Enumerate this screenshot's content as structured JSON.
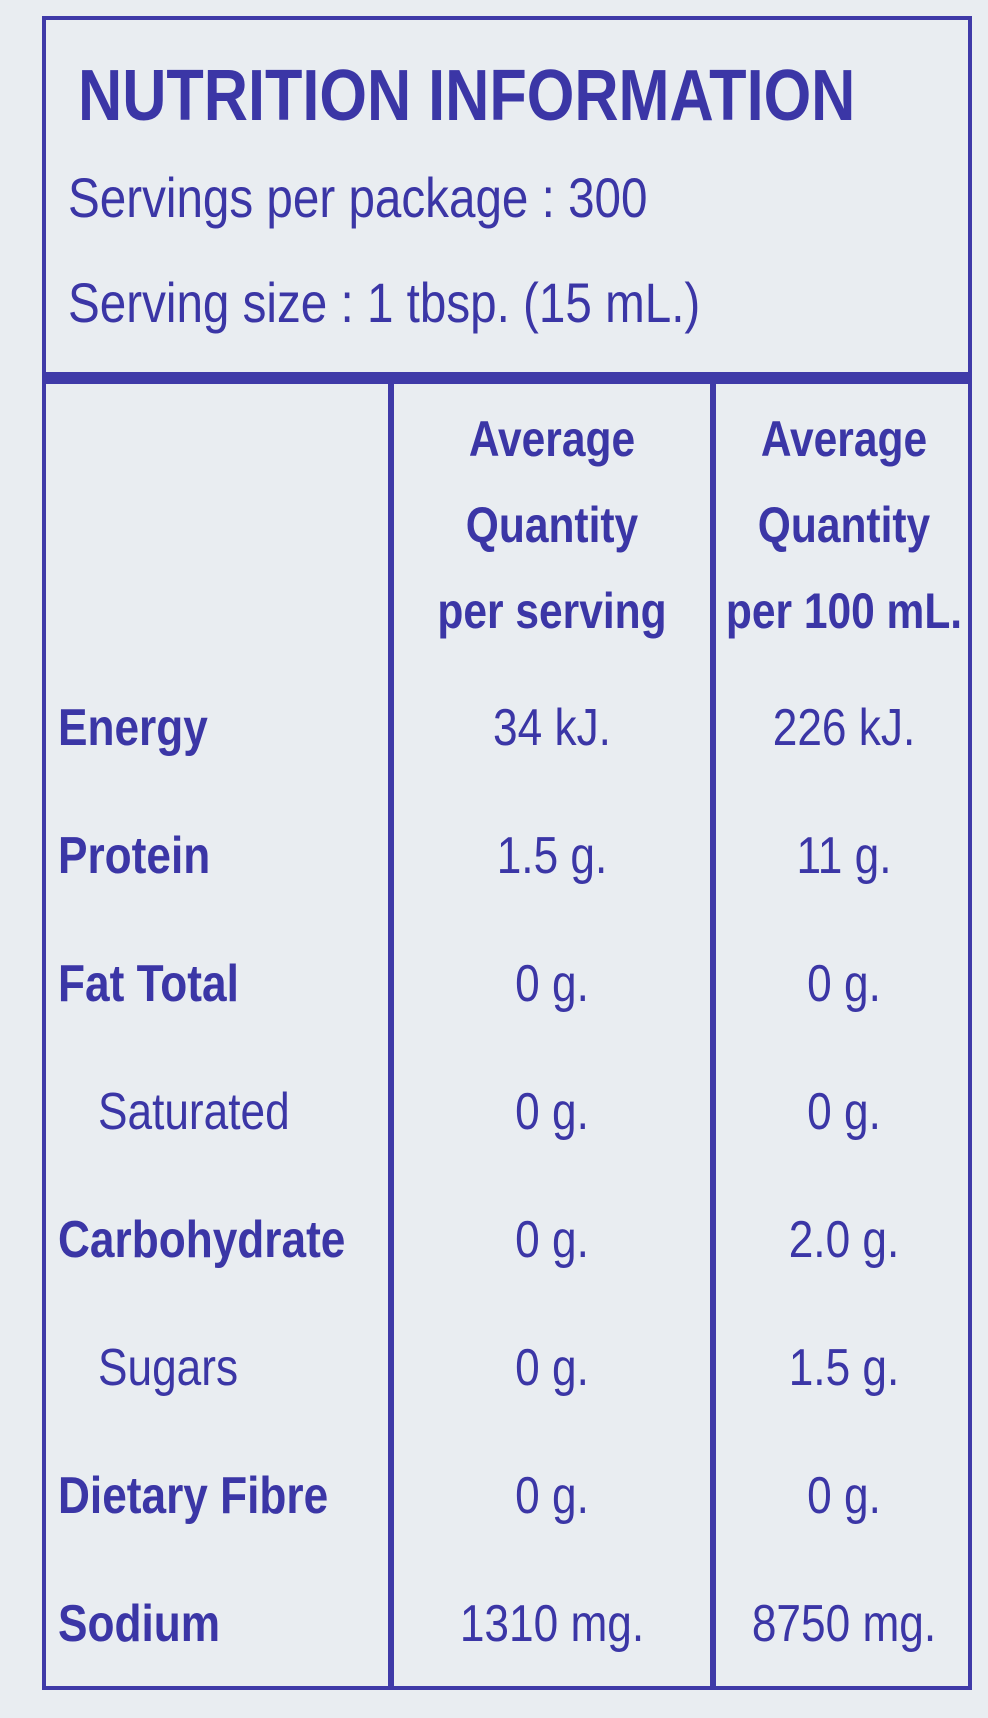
{
  "header": {
    "title": "NUTRITION INFORMATION",
    "servings": "Servings per package : 300",
    "serving_size": "Serving size : 1 tbsp. (15 mL.)"
  },
  "table": {
    "columns": [
      [
        "Average",
        "Quantity",
        "per serving"
      ],
      [
        "Average",
        "Quantity",
        "per 100 mL."
      ]
    ],
    "rows": [
      [
        "Energy",
        "34 kJ.",
        "226 kJ."
      ],
      [
        "Protein",
        "1.5 g.",
        "11 g."
      ],
      [
        "Fat Total",
        "0 g.",
        "0 g."
      ],
      [
        "Saturated",
        "0 g.",
        "0 g."
      ],
      [
        "Carbohydrate",
        "0 g.",
        "2.0 g."
      ],
      [
        "Sugars",
        "0 g.",
        "1.5 g."
      ],
      [
        "Dietary Fibre",
        "0 g.",
        "0 g."
      ],
      [
        "Sodium",
        "1310 mg.",
        "8750 mg."
      ]
    ],
    "indented": [
      false,
      false,
      false,
      true,
      false,
      true,
      false,
      false
    ]
  }
}
